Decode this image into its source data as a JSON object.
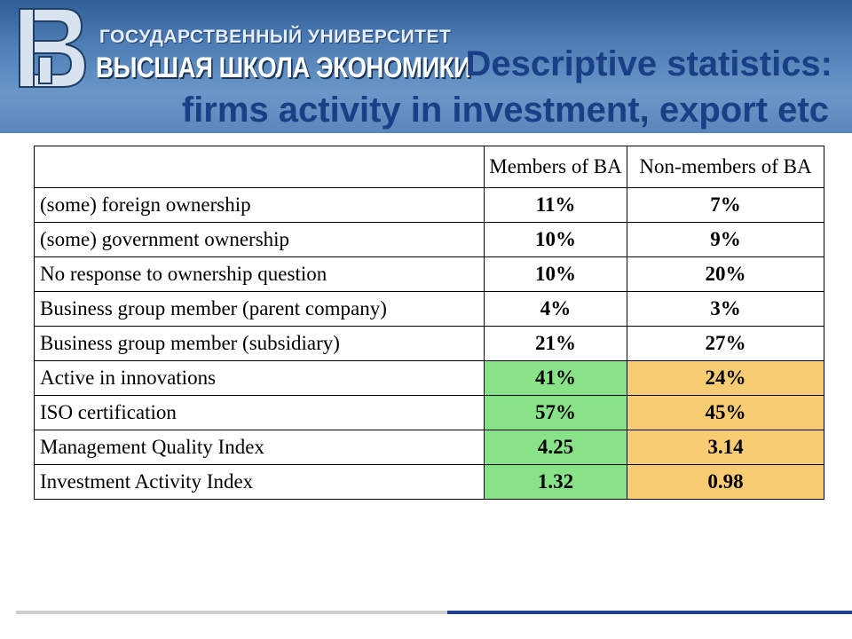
{
  "header": {
    "university_line1": "ГОСУДАРСТВЕННЫЙ УНИВЕРСИТЕТ",
    "university_line2": "ВЫСШАЯ ШКОЛА ЭКОНОМИКИ",
    "title_line1": "Descriptive statistics:",
    "title_line2": "firms activity in investment, export etc"
  },
  "table": {
    "headers": [
      "",
      "Members of BA",
      "Non-members of BA"
    ],
    "rows": [
      {
        "label": "(some)  foreign ownership",
        "members": "11%",
        "nonmembers": "7%"
      },
      {
        "label": "(some)  government ownership",
        "members": "10%",
        "nonmembers": "9%"
      },
      {
        "label": "No response to ownership question",
        "members": "10%",
        "nonmembers": "20%"
      },
      {
        "label": "Business group member (parent company)",
        "members": "4%",
        "nonmembers": "3%"
      },
      {
        "label": "Business group member (subsidiary)",
        "members": "21%",
        "nonmembers": "27%"
      },
      {
        "label": "Active in innovations",
        "members": "41%",
        "nonmembers": "24%"
      },
      {
        "label": "ISO certification",
        "members": "57%",
        "nonmembers": "45%"
      },
      {
        "label": "Management Quality Index",
        "members": "4.25",
        "nonmembers": "3.14"
      },
      {
        "label": "Investment Activity Index",
        "members": "1.32",
        "nonmembers": "0.98"
      }
    ]
  },
  "colors": {
    "highlight_members": "#88e288",
    "highlight_nonmembers": "#f8cc72",
    "title": "#1a3f86"
  },
  "icons": {
    "logo": "hse-logo-icon"
  }
}
